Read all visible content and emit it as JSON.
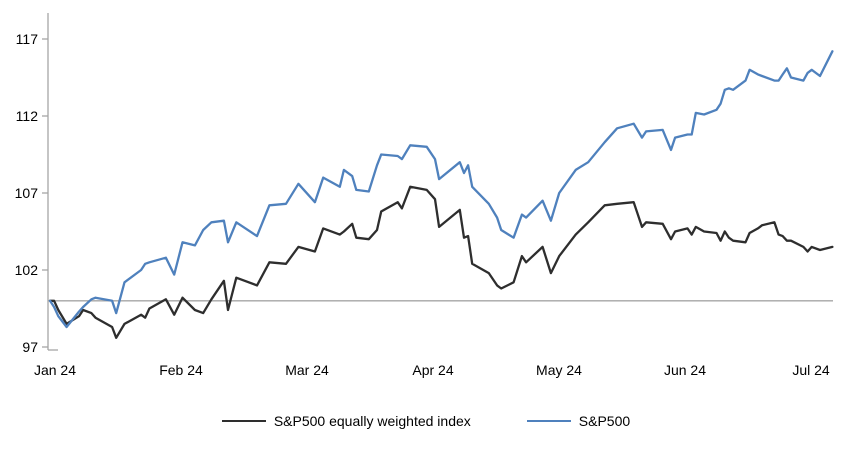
{
  "chart_data": {
    "type": "line",
    "title": "",
    "x_axis": {
      "tick_labels": [
        "Jan 24",
        "Feb 24",
        "Mar 24",
        "Apr 24",
        "May 24",
        "Jun 24",
        "Jul 24"
      ],
      "start_date": "2024-01-01"
    },
    "y_axis": {
      "ticks": [
        97,
        102,
        107,
        112,
        117
      ],
      "range": [
        97,
        117
      ]
    },
    "baseline_value": 100,
    "grid": "off",
    "legend_position": "bottom",
    "axis_color": "#a6a6a6",
    "dates": [
      "2024-01-01",
      "2024-01-02",
      "2024-01-03",
      "2024-01-05",
      "2024-01-08",
      "2024-01-09",
      "2024-01-11",
      "2024-01-12",
      "2024-01-16",
      "2024-01-17",
      "2024-01-19",
      "2024-01-23",
      "2024-01-24",
      "2024-01-25",
      "2024-01-29",
      "2024-01-31",
      "2024-02-02",
      "2024-02-05",
      "2024-02-07",
      "2024-02-09",
      "2024-02-12",
      "2024-02-13",
      "2024-02-15",
      "2024-02-20",
      "2024-02-23",
      "2024-02-27",
      "2024-03-01",
      "2024-03-05",
      "2024-03-07",
      "2024-03-11",
      "2024-03-12",
      "2024-03-14",
      "2024-03-15",
      "2024-03-18",
      "2024-03-20",
      "2024-03-21",
      "2024-03-25",
      "2024-03-26",
      "2024-03-28",
      "2024-04-01",
      "2024-04-03",
      "2024-04-04",
      "2024-04-09",
      "2024-04-10",
      "2024-04-11",
      "2024-04-12",
      "2024-04-16",
      "2024-04-18",
      "2024-04-19",
      "2024-04-22",
      "2024-04-24",
      "2024-04-25",
      "2024-04-29",
      "2024-05-01",
      "2024-05-03",
      "2024-05-07",
      "2024-05-10",
      "2024-05-14",
      "2024-05-17",
      "2024-05-21",
      "2024-05-23",
      "2024-05-24",
      "2024-05-28",
      "2024-05-30",
      "2024-05-31",
      "2024-06-03",
      "2024-06-04",
      "2024-06-05",
      "2024-06-07",
      "2024-06-10",
      "2024-06-11",
      "2024-06-12",
      "2024-06-13",
      "2024-06-14",
      "2024-06-17",
      "2024-06-18",
      "2024-06-20",
      "2024-06-21",
      "2024-06-24",
      "2024-06-25",
      "2024-06-26",
      "2024-06-27",
      "2024-06-28",
      "2024-07-01",
      "2024-07-02",
      "2024-07-03",
      "2024-07-05",
      "2024-07-08"
    ],
    "series": [
      {
        "name": "S&P500 equally weighted index",
        "color": "#2e2e2e",
        "values": [
          100.0,
          100.0,
          99.4,
          98.5,
          99.0,
          99.4,
          99.2,
          98.9,
          98.3,
          97.6,
          98.5,
          99.1,
          98.9,
          99.5,
          100.1,
          99.1,
          100.2,
          99.4,
          99.2,
          100.1,
          101.3,
          99.4,
          101.5,
          101.0,
          102.5,
          102.4,
          103.5,
          103.2,
          104.7,
          104.3,
          104.5,
          105.0,
          104.1,
          104.0,
          104.6,
          105.8,
          106.4,
          106.0,
          107.4,
          107.2,
          106.6,
          104.8,
          105.9,
          104.1,
          104.2,
          102.4,
          101.8,
          101.0,
          100.8,
          101.2,
          102.9,
          102.5,
          103.5,
          101.8,
          102.9,
          104.3,
          105.1,
          106.2,
          106.3,
          106.4,
          104.8,
          105.1,
          105.0,
          104.0,
          104.5,
          104.7,
          104.3,
          104.8,
          104.5,
          104.4,
          103.9,
          104.5,
          104.1,
          103.9,
          103.8,
          104.4,
          104.7,
          104.9,
          105.1,
          104.3,
          104.2,
          103.9,
          103.9,
          103.5,
          103.2,
          103.5,
          103.3,
          103.5
        ]
      },
      {
        "name": "S&P500",
        "color": "#4f81bd",
        "values": [
          100.0,
          99.6,
          99.0,
          98.3,
          99.3,
          99.6,
          100.1,
          100.2,
          100.0,
          99.2,
          101.2,
          102.0,
          102.4,
          102.5,
          102.8,
          101.7,
          103.8,
          103.6,
          104.6,
          105.1,
          105.2,
          103.8,
          105.1,
          104.2,
          106.2,
          106.3,
          107.6,
          106.4,
          108.0,
          107.4,
          108.5,
          108.1,
          107.2,
          107.1,
          108.8,
          109.5,
          109.4,
          109.2,
          110.1,
          110.0,
          109.2,
          107.9,
          109.0,
          108.3,
          108.8,
          107.4,
          106.3,
          105.4,
          104.6,
          104.1,
          105.6,
          105.4,
          106.5,
          105.2,
          107.0,
          108.5,
          109.0,
          110.3,
          111.2,
          111.5,
          110.6,
          111.0,
          111.1,
          109.8,
          110.6,
          110.8,
          110.8,
          112.2,
          112.1,
          112.4,
          112.8,
          113.7,
          113.8,
          113.7,
          114.3,
          115.0,
          114.7,
          114.6,
          114.3,
          114.3,
          114.7,
          115.1,
          114.5,
          114.3,
          114.8,
          115.0,
          114.6,
          116.2
        ]
      }
    ]
  },
  "legend": {
    "item1_label": "S&P500 equally weighted index",
    "item2_label": "S&P500"
  }
}
